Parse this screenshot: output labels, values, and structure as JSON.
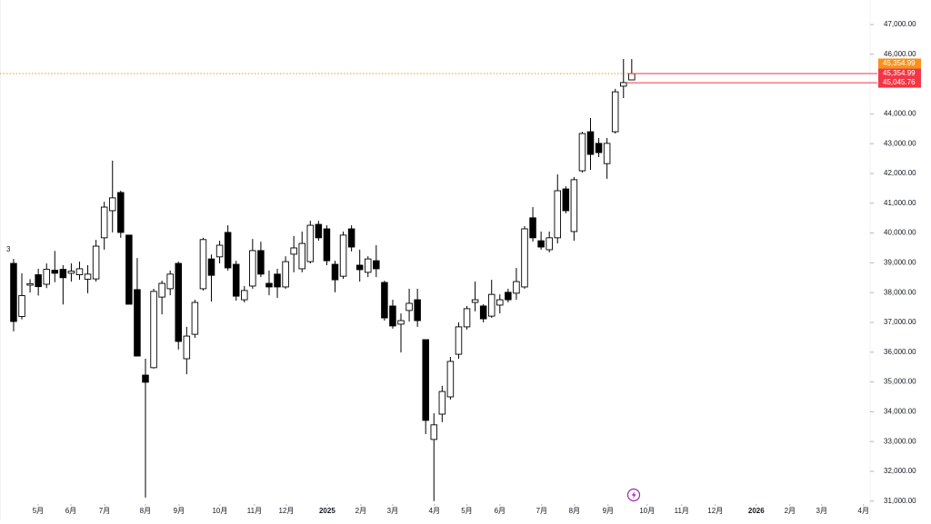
{
  "chart_data": {
    "type": "candlestick",
    "left_label": "3",
    "open": [
      38980,
      37200,
      38250,
      38600,
      38280,
      38750,
      38780,
      38650,
      38600,
      38450,
      38460,
      39840,
      40750,
      41360,
      39930,
      38100,
      35230,
      35480,
      37850,
      38130,
      38980,
      35780,
      36600,
      38130,
      39130,
      39200,
      40020,
      38950,
      37760,
      38220,
      39410,
      38310,
      38620,
      38190,
      39290,
      38800,
      39040,
      40290,
      40140,
      38950,
      38550,
      40140,
      38920,
      38680,
      39070,
      38340,
      37550,
      36940,
      37400,
      37760,
      36420,
      33070,
      33920,
      34500,
      35930,
      36850,
      37670,
      37550,
      37210,
      37580,
      38010,
      37980,
      38190,
      40510,
      39740,
      39440,
      39840,
      41480,
      40050,
      42090,
      43400,
      43010,
      42330,
      43400,
      44930,
      45140
    ],
    "high": [
      39130,
      38650,
      38450,
      38800,
      38980,
      39400,
      38920,
      38980,
      39040,
      38920,
      39770,
      41050,
      42430,
      41420,
      39930,
      39160,
      35780,
      38130,
      38400,
      38740,
      39040,
      36850,
      37760,
      39840,
      39280,
      39740,
      40260,
      39070,
      38220,
      39800,
      39710,
      38740,
      38800,
      39220,
      39900,
      40050,
      40410,
      40410,
      40260,
      39070,
      40050,
      40260,
      39440,
      39220,
      39590,
      38400,
      37760,
      37300,
      38130,
      38130,
      36420,
      33950,
      34870,
      35840,
      37000,
      37550,
      38370,
      37610,
      38430,
      37940,
      38130,
      38830,
      40230,
      40870,
      40050,
      40050,
      41970,
      41570,
      41880,
      43400,
      43860,
      43190,
      43190,
      44840,
      45840,
      45840
    ],
    "low": [
      36700,
      37100,
      38000,
      37900,
      38150,
      38350,
      37600,
      38370,
      38430,
      37980,
      38370,
      39440,
      40020,
      39840,
      37610,
      35870,
      31120,
      35450,
      37270,
      37910,
      36090,
      35260,
      36480,
      38070,
      37700,
      38980,
      38740,
      37730,
      37670,
      38130,
      38520,
      37910,
      37820,
      38130,
      38680,
      38680,
      38980,
      39740,
      38920,
      38010,
      38460,
      39380,
      38370,
      38520,
      38520,
      37060,
      36790,
      35990,
      37030,
      36850,
      33250,
      31000,
      33650,
      34410,
      35780,
      36760,
      37370,
      37000,
      37150,
      37300,
      37670,
      37760,
      38130,
      39710,
      39440,
      39350,
      39650,
      40660,
      39740,
      42030,
      42120,
      42550,
      41820,
      43340,
      44530,
      45140
    ],
    "close": [
      37030,
      37900,
      38300,
      38200,
      38780,
      38650,
      38500,
      38720,
      38800,
      38620,
      39560,
      40870,
      41180,
      40020,
      37610,
      35870,
      34990,
      38040,
      38310,
      38620,
      36360,
      36540,
      37670,
      39780,
      38580,
      39590,
      38830,
      37880,
      38070,
      39410,
      38620,
      38190,
      38190,
      39040,
      39500,
      39650,
      40260,
      39840,
      39070,
      38430,
      39930,
      39530,
      38770,
      39130,
      38800,
      37150,
      36880,
      37060,
      37640,
      37060,
      33710,
      33560,
      34680,
      35690,
      36850,
      37460,
      37760,
      37120,
      37940,
      37760,
      37760,
      38370,
      40140,
      39840,
      39530,
      39840,
      41420,
      40750,
      41790,
      43340,
      42640,
      42700,
      43010,
      44740,
      45050,
      45350
    ],
    "up_color": "#ffffff",
    "down_color": "#000000",
    "xlim": [
      -1.65,
      103.7
    ],
    "xticks": [
      {
        "value": 2.98,
        "label": "5月"
      },
      {
        "value": 6.95,
        "label": "6月"
      },
      {
        "value": 11.03,
        "label": "7月"
      },
      {
        "value": 15.99,
        "label": "8月"
      },
      {
        "value": 20.07,
        "label": "9月"
      },
      {
        "value": 25.04,
        "label": "10月"
      },
      {
        "value": 29.23,
        "label": "11月"
      },
      {
        "value": 33.09,
        "label": "12月"
      },
      {
        "value": 38.05,
        "label": "2025"
      },
      {
        "value": 42.13,
        "label": "2月"
      },
      {
        "value": 45.99,
        "label": "3月"
      },
      {
        "value": 51.06,
        "label": "4月"
      },
      {
        "value": 54.99,
        "label": "5月"
      },
      {
        "value": 59.0,
        "label": "6月"
      },
      {
        "value": 64.08,
        "label": "7月"
      },
      {
        "value": 68.05,
        "label": "8月"
      },
      {
        "value": 72.13,
        "label": "9月"
      },
      {
        "value": 76.87,
        "label": "10月"
      },
      {
        "value": 81.06,
        "label": "11月"
      },
      {
        "value": 85.14,
        "label": "12月"
      },
      {
        "value": 90.11,
        "label": "2026"
      },
      {
        "value": 94.19,
        "label": "2月"
      },
      {
        "value": 98.05,
        "label": "3月"
      },
      {
        "value": 103.12,
        "label": "4月"
      }
    ],
    "ylim": [
      30902,
      47823
    ],
    "yticks": [
      {
        "value": 47000,
        "label": "47,000.00"
      },
      {
        "value": 46000,
        "label": "46,000.00"
      },
      {
        "value": 44000,
        "label": "44,000.00"
      },
      {
        "value": 43000,
        "label": "43,000.00"
      },
      {
        "value": 42000,
        "label": "42,000.00"
      },
      {
        "value": 41000,
        "label": "41,000.00"
      },
      {
        "value": 40000,
        "label": "40,000.00"
      },
      {
        "value": 39000,
        "label": "39,000.00"
      },
      {
        "value": 38000,
        "label": "38,000.00"
      },
      {
        "value": 37000,
        "label": "37,000.00"
      },
      {
        "value": 36000,
        "label": "36,000.00"
      },
      {
        "value": 35000,
        "label": "35,000.00"
      },
      {
        "value": 34000,
        "label": "34,000.00"
      },
      {
        "value": 33000,
        "label": "33,000.00"
      },
      {
        "value": 32000,
        "label": "32,000.00"
      },
      {
        "value": 31000,
        "label": "31,000.00"
      }
    ],
    "price_labels": [
      {
        "value": 45354.99,
        "label": "45,354.99",
        "color": "#f7931a",
        "line": "dotted"
      },
      {
        "value": 45354.99,
        "label": "45,354.99",
        "color": "#f23645",
        "line": "solid"
      },
      {
        "value": 45045.76,
        "label": "45,045.76",
        "color": "#f23645",
        "line": "solid"
      }
    ]
  }
}
